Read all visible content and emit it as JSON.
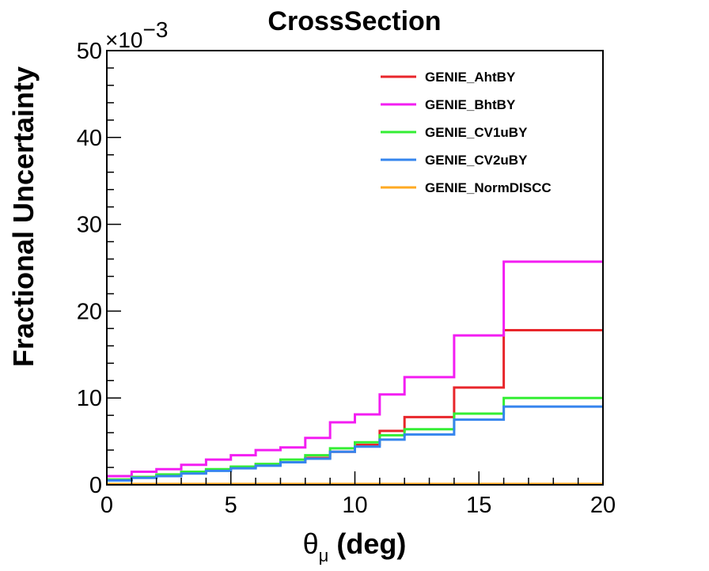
{
  "chart_data": {
    "type": "line",
    "title": "CrossSection",
    "xlabel_symbol": "θ",
    "xlabel_subscript": "μ",
    "xlabel_unit": "(deg)",
    "ylabel": "Fractional Uncertainty",
    "y_multiplier_base": "×10",
    "y_multiplier_exp": "−3",
    "xlim": [
      0,
      20
    ],
    "ylim": [
      0,
      50
    ],
    "x_ticks": [
      0,
      5,
      10,
      15,
      20
    ],
    "y_ticks": [
      0,
      10,
      20,
      30,
      40,
      50
    ],
    "bin_edges": [
      0,
      1,
      2,
      3,
      4,
      5,
      6,
      7,
      8,
      9,
      10,
      11,
      12,
      14,
      16,
      20
    ],
    "legend_position": "top-right",
    "series": [
      {
        "name": "GENIE_AhtBY",
        "color": "#e8262b",
        "values": [
          0.6,
          0.9,
          1.1,
          1.4,
          1.7,
          2.0,
          2.3,
          2.6,
          3.1,
          3.8,
          4.6,
          6.2,
          7.8,
          11.2,
          17.8
        ]
      },
      {
        "name": "GENIE_BhtBY",
        "color": "#f31df2",
        "values": [
          1.0,
          1.5,
          1.8,
          2.3,
          2.9,
          3.4,
          4.0,
          4.3,
          5.4,
          7.2,
          8.1,
          10.4,
          12.4,
          17.2,
          25.7
        ]
      },
      {
        "name": "GENIE_CV1uBY",
        "color": "#33ee33",
        "values": [
          0.6,
          0.9,
          1.2,
          1.5,
          1.8,
          2.1,
          2.4,
          2.9,
          3.4,
          4.2,
          4.9,
          5.7,
          6.4,
          8.2,
          10.0
        ]
      },
      {
        "name": "GENIE_CV2uBY",
        "color": "#3585ee",
        "values": [
          0.5,
          0.8,
          1.0,
          1.3,
          1.6,
          1.9,
          2.2,
          2.6,
          3.0,
          3.8,
          4.4,
          5.2,
          5.8,
          7.5,
          9.0
        ]
      },
      {
        "name": "GENIE_NormDISCC",
        "color": "#ffaa22",
        "values": [
          0.1,
          0.1,
          0.1,
          0.1,
          0.1,
          0.1,
          0.1,
          0.1,
          0.1,
          0.1,
          0.1,
          0.1,
          0.1,
          0.1,
          0.1
        ]
      }
    ]
  }
}
